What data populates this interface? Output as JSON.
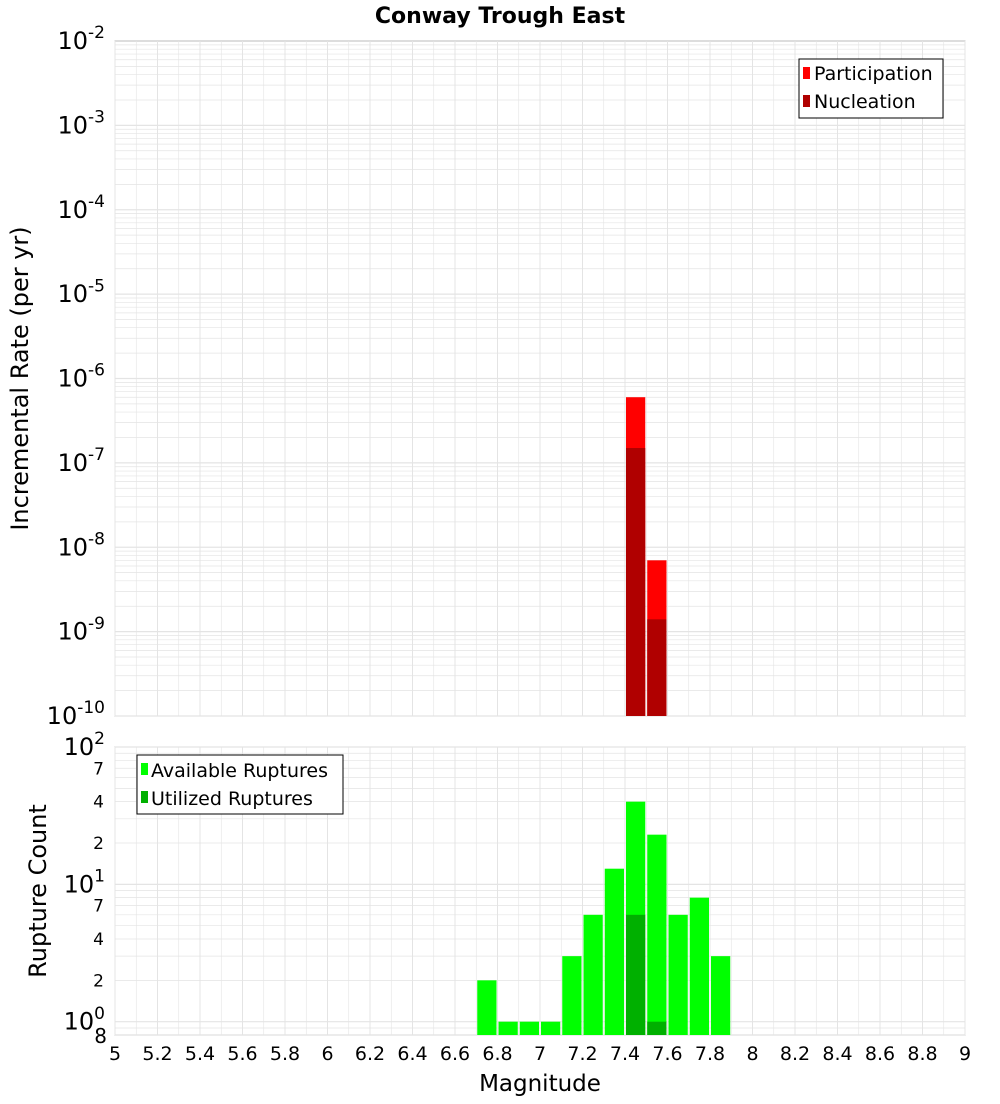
{
  "title": "Conway Trough East",
  "colors": {
    "participation": "#ff0000",
    "nucleation": "#b00000",
    "available": "#00ff00",
    "utilized": "#00b000",
    "grid": "#e4e4e4",
    "plot_border": "#bbbbbb"
  },
  "chart_data": [
    {
      "type": "bar",
      "title": "Conway Trough East",
      "xlabel": "",
      "ylabel": "Incremental Rate (per yr)",
      "yscale": "log",
      "ylim": [
        1e-10,
        0.01
      ],
      "xlim": [
        5,
        9
      ],
      "y_tick_labels": [
        {
          "base": "10",
          "exp": "-10"
        },
        {
          "base": "10",
          "exp": "-9"
        },
        {
          "base": "10",
          "exp": "-8"
        },
        {
          "base": "10",
          "exp": "-7"
        },
        {
          "base": "10",
          "exp": "-6"
        },
        {
          "base": "10",
          "exp": "-5"
        },
        {
          "base": "10",
          "exp": "-4"
        },
        {
          "base": "10",
          "exp": "-3"
        },
        {
          "base": "10",
          "exp": "-2"
        }
      ],
      "bin_width": 0.1,
      "legend": {
        "placement": "top-right",
        "entries": [
          "Participation",
          "Nucleation"
        ]
      },
      "series": [
        {
          "name": "Participation",
          "x": [
            7.45,
            7.55
          ],
          "values": [
            6e-07,
            7e-09
          ]
        },
        {
          "name": "Nucleation",
          "x": [
            7.45,
            7.55
          ],
          "values": [
            1.5e-07,
            1.4e-09
          ]
        }
      ],
      "grid": true
    },
    {
      "type": "bar",
      "xlabel": "Magnitude",
      "ylabel": "Rupture Count",
      "yscale": "log",
      "ylim": [
        0.8,
        100
      ],
      "xlim": [
        5,
        9
      ],
      "x_tick_labels": [
        "5",
        "5.2",
        "5.4",
        "5.6",
        "5.8",
        "6",
        "6.2",
        "6.4",
        "6.6",
        "6.8",
        "7",
        "7.2",
        "7.4",
        "7.6",
        "7.8",
        "8",
        "8.2",
        "8.4",
        "8.6",
        "8.8",
        "9"
      ],
      "y_tick_labels": [
        {
          "text": "10",
          "exp": "0",
          "major": true
        },
        {
          "text": "2",
          "major": false
        },
        {
          "text": "4",
          "major": false
        },
        {
          "text": "7",
          "major": false
        },
        {
          "text": "10",
          "exp": "1",
          "major": true
        },
        {
          "text": "2",
          "major": false
        },
        {
          "text": "4",
          "major": false
        },
        {
          "text": "7",
          "major": false
        },
        {
          "text": "10",
          "exp": "2",
          "major": true
        }
      ],
      "y_axis_bottom_label": "8",
      "bin_width": 0.1,
      "legend": {
        "placement": "top-left",
        "entries": [
          "Available Ruptures",
          "Utilized Ruptures"
        ]
      },
      "series": [
        {
          "name": "Available Ruptures",
          "x": [
            6.75,
            6.85,
            6.95,
            7.05,
            7.15,
            7.25,
            7.35,
            7.45,
            7.55,
            7.65,
            7.75,
            7.85
          ],
          "values": [
            2,
            1,
            1,
            1,
            3,
            6,
            13,
            40,
            23,
            6,
            8,
            3
          ]
        },
        {
          "name": "Utilized Ruptures",
          "x": [
            7.45,
            7.55
          ],
          "values": [
            6,
            1
          ]
        }
      ],
      "grid": true
    }
  ]
}
